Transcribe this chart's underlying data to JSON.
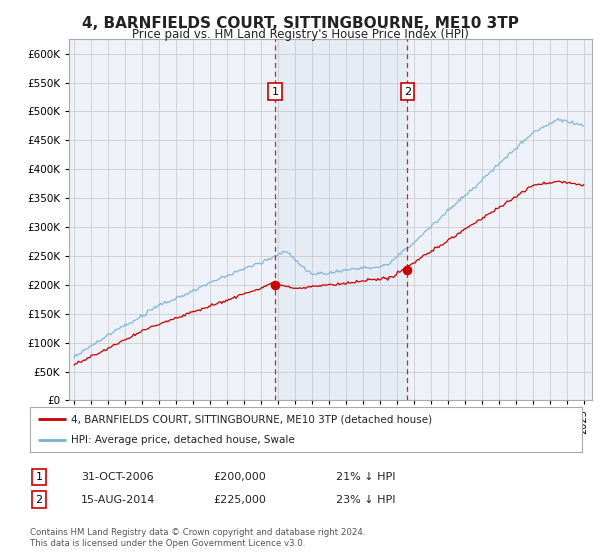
{
  "title": "4, BARNFIELDS COURT, SITTINGBOURNE, ME10 3TP",
  "subtitle": "Price paid vs. HM Land Registry's House Price Index (HPI)",
  "legend_property": "4, BARNFIELDS COURT, SITTINGBOURNE, ME10 3TP (detached house)",
  "legend_hpi": "HPI: Average price, detached house, Swale",
  "sale1_date": "31-OCT-2006",
  "sale1_price": "£200,000",
  "sale1_hpi": "21% ↓ HPI",
  "sale2_date": "15-AUG-2014",
  "sale2_price": "£225,000",
  "sale2_hpi": "23% ↓ HPI",
  "footer": "Contains HM Land Registry data © Crown copyright and database right 2024.\nThis data is licensed under the Open Government Licence v3.0.",
  "property_color": "#cc0000",
  "hpi_color": "#7bafd4",
  "sale_vline_color": "#cc0000",
  "background_color": "#ffffff",
  "plot_bg_color": "#f0f4f8",
  "grid_color": "#cccccc",
  "ylim": [
    0,
    625000
  ],
  "yticks": [
    0,
    50000,
    100000,
    150000,
    200000,
    250000,
    300000,
    350000,
    400000,
    450000,
    500000,
    550000,
    600000
  ],
  "sale1_year": 2006.83,
  "sale2_year": 2014.62,
  "sale1_price_val": 200000,
  "sale2_price_val": 225000,
  "xstart": 1995,
  "xend": 2025
}
